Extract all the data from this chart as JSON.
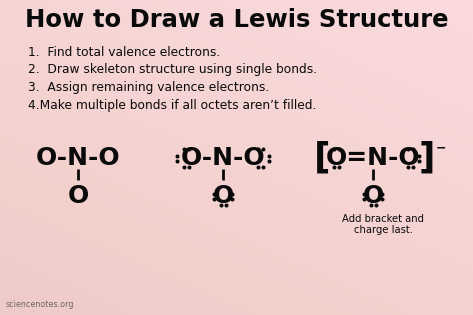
{
  "title": "How to Draw a Lewis Structure",
  "steps": [
    "1.  Find total valence electrons.",
    "2.  Draw skeleton structure using single bonds.",
    "3.  Assign remaining valence electrons.",
    "4.Make multiple bonds if all octets aren’t filled."
  ],
  "bg_colors": [
    "#e8c8cc",
    "#f0d0d4",
    "#f5c8c0",
    "#e0c0c8"
  ],
  "text_color": "#0a0a0a",
  "watermark": "sciencenotes.org",
  "fig_width": 4.73,
  "fig_height": 3.15,
  "dpi": 100
}
